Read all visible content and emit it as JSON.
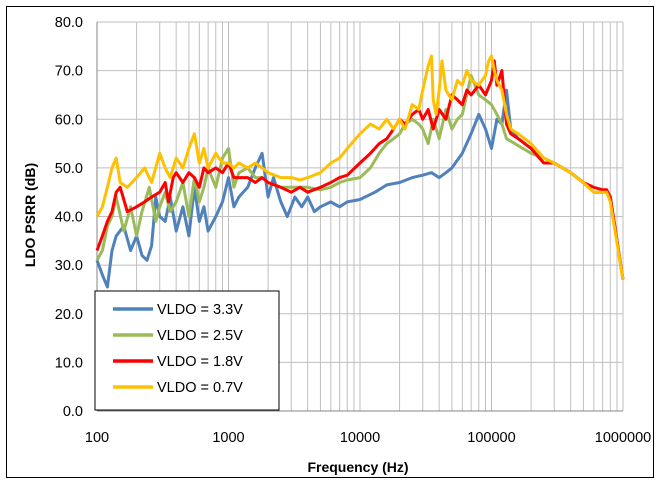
{
  "chart_data": {
    "type": "line",
    "xlabel": "Frequency (Hz)",
    "ylabel": "LDO PSRR (dB)",
    "x_scale": "log",
    "xlim": [
      100,
      1000000
    ],
    "ylim": [
      0,
      80
    ],
    "x_tick_labels": [
      "100",
      "1000",
      "10000",
      "100000",
      "1000000"
    ],
    "y_tick_labels": [
      "0.0",
      "10.0",
      "20.0",
      "30.0",
      "40.0",
      "50.0",
      "60.0",
      "70.0",
      "80.0"
    ],
    "grid": true,
    "legend_position": "bottom-left",
    "series": [
      {
        "name": "VLDO = 3.3V",
        "color": "#4f81bd",
        "points": [
          [
            100,
            31
          ],
          [
            110,
            28
          ],
          [
            120,
            25.5
          ],
          [
            130,
            33
          ],
          [
            140,
            36
          ],
          [
            160,
            38
          ],
          [
            180,
            33
          ],
          [
            200,
            36
          ],
          [
            220,
            32
          ],
          [
            240,
            31
          ],
          [
            260,
            34
          ],
          [
            280,
            44
          ],
          [
            300,
            40
          ],
          [
            330,
            39
          ],
          [
            360,
            44
          ],
          [
            400,
            37
          ],
          [
            450,
            42
          ],
          [
            500,
            36
          ],
          [
            550,
            46
          ],
          [
            600,
            39
          ],
          [
            650,
            42
          ],
          [
            700,
            37
          ],
          [
            800,
            40
          ],
          [
            900,
            43
          ],
          [
            1000,
            48
          ],
          [
            1100,
            42
          ],
          [
            1200,
            44
          ],
          [
            1400,
            46
          ],
          [
            1600,
            50
          ],
          [
            1800,
            53
          ],
          [
            2000,
            44
          ],
          [
            2200,
            48
          ],
          [
            2500,
            43
          ],
          [
            2800,
            40
          ],
          [
            3200,
            44
          ],
          [
            3600,
            42
          ],
          [
            4000,
            44
          ],
          [
            4500,
            41
          ],
          [
            5000,
            42
          ],
          [
            6000,
            43
          ],
          [
            7000,
            42
          ],
          [
            8000,
            43
          ],
          [
            10000,
            43.5
          ],
          [
            13000,
            45
          ],
          [
            16000,
            46.5
          ],
          [
            20000,
            47
          ],
          [
            25000,
            48
          ],
          [
            30000,
            48.5
          ],
          [
            35000,
            49
          ],
          [
            40000,
            48
          ],
          [
            45000,
            49
          ],
          [
            50000,
            50
          ],
          [
            60000,
            53
          ],
          [
            70000,
            57
          ],
          [
            80000,
            61
          ],
          [
            90000,
            58
          ],
          [
            100000,
            54
          ],
          [
            110000,
            60
          ],
          [
            120000,
            59
          ],
          [
            130000,
            66
          ],
          [
            140000,
            58
          ],
          [
            160000,
            56
          ],
          [
            200000,
            54
          ],
          [
            250000,
            51
          ],
          [
            300000,
            51
          ],
          [
            400000,
            49
          ],
          [
            500000,
            47
          ],
          [
            600000,
            45
          ],
          [
            700000,
            45
          ],
          [
            750000,
            45.5
          ],
          [
            800000,
            44
          ],
          [
            1000000,
            27
          ]
        ]
      },
      {
        "name": "VLDO = 2.5V",
        "color": "#9bbb59",
        "points": [
          [
            100,
            31
          ],
          [
            110,
            33
          ],
          [
            120,
            38
          ],
          [
            130,
            40
          ],
          [
            140,
            44
          ],
          [
            160,
            37
          ],
          [
            180,
            42
          ],
          [
            200,
            36
          ],
          [
            220,
            41
          ],
          [
            250,
            46
          ],
          [
            280,
            39
          ],
          [
            300,
            42
          ],
          [
            330,
            45
          ],
          [
            360,
            41
          ],
          [
            400,
            43
          ],
          [
            450,
            47
          ],
          [
            500,
            40
          ],
          [
            550,
            48
          ],
          [
            600,
            43
          ],
          [
            650,
            46
          ],
          [
            700,
            50
          ],
          [
            800,
            46
          ],
          [
            900,
            52
          ],
          [
            1000,
            54
          ],
          [
            1100,
            46
          ],
          [
            1200,
            49
          ],
          [
            1400,
            50
          ],
          [
            1600,
            48
          ],
          [
            1800,
            48
          ],
          [
            2000,
            47
          ],
          [
            2500,
            46
          ],
          [
            3000,
            46
          ],
          [
            3500,
            46
          ],
          [
            4000,
            46
          ],
          [
            5000,
            45.5
          ],
          [
            6000,
            46
          ],
          [
            7000,
            47
          ],
          [
            8000,
            47.5
          ],
          [
            10000,
            48
          ],
          [
            12000,
            50
          ],
          [
            14000,
            53
          ],
          [
            16000,
            55
          ],
          [
            18000,
            56
          ],
          [
            20000,
            57
          ],
          [
            22000,
            59
          ],
          [
            25000,
            60
          ],
          [
            28000,
            59
          ],
          [
            30000,
            58
          ],
          [
            33000,
            55
          ],
          [
            36000,
            60
          ],
          [
            40000,
            56
          ],
          [
            45000,
            62
          ],
          [
            50000,
            58
          ],
          [
            55000,
            60
          ],
          [
            60000,
            61
          ],
          [
            70000,
            69
          ],
          [
            80000,
            65
          ],
          [
            90000,
            64
          ],
          [
            100000,
            63
          ],
          [
            110000,
            61
          ],
          [
            120000,
            59
          ],
          [
            130000,
            56
          ],
          [
            150000,
            55
          ],
          [
            200000,
            53
          ],
          [
            250000,
            52
          ],
          [
            300000,
            51
          ],
          [
            400000,
            49
          ],
          [
            500000,
            47
          ],
          [
            600000,
            45
          ],
          [
            700000,
            45
          ],
          [
            750000,
            45
          ],
          [
            800000,
            44
          ],
          [
            1000000,
            27
          ]
        ]
      },
      {
        "name": "VLDO = 1.8V",
        "color": "#ff0000",
        "points": [
          [
            100,
            33
          ],
          [
            110,
            36
          ],
          [
            120,
            39
          ],
          [
            130,
            41
          ],
          [
            140,
            45
          ],
          [
            150,
            46
          ],
          [
            170,
            41
          ],
          [
            200,
            42
          ],
          [
            230,
            43
          ],
          [
            260,
            44
          ],
          [
            300,
            45
          ],
          [
            330,
            47
          ],
          [
            350,
            43
          ],
          [
            380,
            48
          ],
          [
            400,
            49
          ],
          [
            450,
            47
          ],
          [
            500,
            49
          ],
          [
            550,
            48
          ],
          [
            600,
            46
          ],
          [
            650,
            50
          ],
          [
            700,
            49
          ],
          [
            800,
            50
          ],
          [
            900,
            49
          ],
          [
            1000,
            51
          ],
          [
            1100,
            48
          ],
          [
            1200,
            48
          ],
          [
            1400,
            48
          ],
          [
            1600,
            47
          ],
          [
            1800,
            48
          ],
          [
            2000,
            47
          ],
          [
            2500,
            46
          ],
          [
            3000,
            45
          ],
          [
            3500,
            46
          ],
          [
            4000,
            45
          ],
          [
            5000,
            46
          ],
          [
            6000,
            47
          ],
          [
            7000,
            48
          ],
          [
            8000,
            48.5
          ],
          [
            10000,
            51
          ],
          [
            12000,
            53
          ],
          [
            14000,
            55
          ],
          [
            16000,
            56
          ],
          [
            18000,
            58
          ],
          [
            20000,
            60
          ],
          [
            22000,
            59
          ],
          [
            25000,
            61
          ],
          [
            28000,
            62
          ],
          [
            30000,
            60
          ],
          [
            33000,
            62
          ],
          [
            36000,
            58
          ],
          [
            40000,
            62
          ],
          [
            45000,
            60
          ],
          [
            50000,
            65
          ],
          [
            55000,
            64
          ],
          [
            60000,
            63
          ],
          [
            65000,
            66
          ],
          [
            70000,
            65
          ],
          [
            80000,
            67
          ],
          [
            90000,
            65
          ],
          [
            100000,
            68
          ],
          [
            105000,
            72
          ],
          [
            110000,
            67
          ],
          [
            120000,
            70
          ],
          [
            130000,
            59
          ],
          [
            140000,
            57
          ],
          [
            160000,
            56
          ],
          [
            200000,
            54
          ],
          [
            250000,
            51
          ],
          [
            300000,
            51
          ],
          [
            400000,
            49
          ],
          [
            500000,
            47
          ],
          [
            600000,
            46
          ],
          [
            700000,
            45.5
          ],
          [
            750000,
            45.5
          ],
          [
            800000,
            44
          ],
          [
            1000000,
            27
          ]
        ]
      },
      {
        "name": "VLDO = 0.7V",
        "color": "#ffc000",
        "points": [
          [
            100,
            40
          ],
          [
            110,
            42
          ],
          [
            120,
            46
          ],
          [
            130,
            50
          ],
          [
            140,
            52
          ],
          [
            150,
            47
          ],
          [
            170,
            46
          ],
          [
            200,
            48
          ],
          [
            230,
            50
          ],
          [
            260,
            47
          ],
          [
            300,
            53
          ],
          [
            330,
            50
          ],
          [
            360,
            48
          ],
          [
            400,
            52
          ],
          [
            450,
            50
          ],
          [
            500,
            54
          ],
          [
            550,
            57
          ],
          [
            600,
            51
          ],
          [
            650,
            54
          ],
          [
            700,
            50
          ],
          [
            800,
            53
          ],
          [
            900,
            51
          ],
          [
            1000,
            51
          ],
          [
            1100,
            50
          ],
          [
            1200,
            51
          ],
          [
            1400,
            50
          ],
          [
            1600,
            51
          ],
          [
            1800,
            50
          ],
          [
            2000,
            49
          ],
          [
            2500,
            48
          ],
          [
            3000,
            48
          ],
          [
            3500,
            47.5
          ],
          [
            4000,
            48
          ],
          [
            5000,
            49
          ],
          [
            6000,
            51
          ],
          [
            7000,
            52
          ],
          [
            8000,
            54
          ],
          [
            10000,
            57
          ],
          [
            12000,
            59
          ],
          [
            14000,
            58
          ],
          [
            16000,
            60
          ],
          [
            18000,
            58
          ],
          [
            20000,
            60
          ],
          [
            22000,
            58
          ],
          [
            25000,
            63
          ],
          [
            28000,
            62
          ],
          [
            30000,
            66
          ],
          [
            33000,
            71
          ],
          [
            35000,
            73
          ],
          [
            36000,
            64
          ],
          [
            38000,
            61
          ],
          [
            40000,
            66
          ],
          [
            42000,
            72
          ],
          [
            45000,
            66
          ],
          [
            50000,
            64
          ],
          [
            55000,
            68
          ],
          [
            60000,
            67
          ],
          [
            65000,
            70
          ],
          [
            70000,
            68
          ],
          [
            80000,
            67
          ],
          [
            90000,
            69
          ],
          [
            95000,
            72
          ],
          [
            100000,
            73
          ],
          [
            105000,
            70
          ],
          [
            110000,
            68
          ],
          [
            120000,
            66
          ],
          [
            130000,
            61
          ],
          [
            140000,
            58
          ],
          [
            160000,
            57
          ],
          [
            200000,
            55
          ],
          [
            250000,
            52
          ],
          [
            300000,
            51
          ],
          [
            400000,
            49
          ],
          [
            500000,
            47
          ],
          [
            600000,
            45
          ],
          [
            700000,
            45
          ],
          [
            750000,
            45
          ],
          [
            800000,
            43
          ],
          [
            1000000,
            27
          ]
        ]
      }
    ]
  }
}
